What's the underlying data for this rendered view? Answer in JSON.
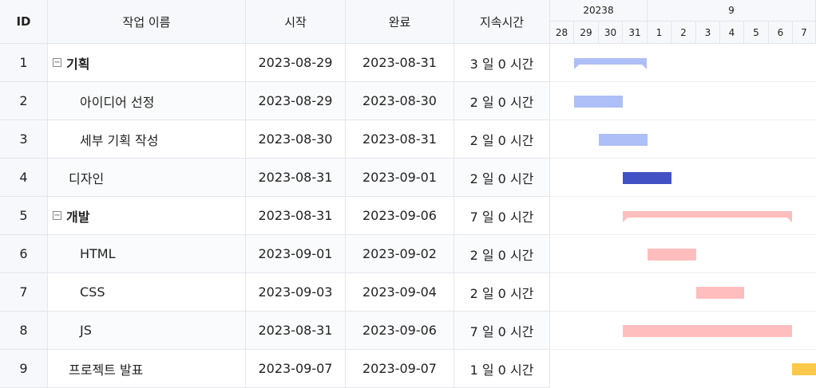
{
  "headers": {
    "id": "ID",
    "name": "작업 이름",
    "start": "시작",
    "end": "완료",
    "duration": "지속시간"
  },
  "timeline": {
    "months": [
      "20238",
      "9"
    ],
    "days": [
      "28",
      "29",
      "30",
      "31",
      "1",
      "2",
      "3",
      "4",
      "5",
      "6",
      "7"
    ]
  },
  "colors": {
    "blue_light": "#aebef7",
    "blue_dark": "#4252c5",
    "pink": "#ffbdbd",
    "yellow": "#fbc94a"
  },
  "tasks": [
    {
      "id": "1",
      "name": "기획",
      "start": "2023-08-29",
      "end": "2023-08-31",
      "duration": "3 일 0 시간",
      "toggle": "−"
    },
    {
      "id": "2",
      "name": "아이디어 선정",
      "start": "2023-08-29",
      "end": "2023-08-30",
      "duration": "2 일 0 시간"
    },
    {
      "id": "3",
      "name": "세부 기획 작성",
      "start": "2023-08-30",
      "end": "2023-08-31",
      "duration": "2 일 0 시간"
    },
    {
      "id": "4",
      "name": "디자인",
      "start": "2023-08-31",
      "end": "2023-09-01",
      "duration": "2 일 0 시간"
    },
    {
      "id": "5",
      "name": "개발",
      "start": "2023-08-31",
      "end": "2023-09-06",
      "duration": "7 일 0 시간",
      "toggle": "−"
    },
    {
      "id": "6",
      "name": "HTML",
      "start": "2023-09-01",
      "end": "2023-09-02",
      "duration": "2 일 0 시간"
    },
    {
      "id": "7",
      "name": "CSS",
      "start": "2023-09-03",
      "end": "2023-09-04",
      "duration": "2 일 0 시간"
    },
    {
      "id": "8",
      "name": "JS",
      "start": "2023-08-31",
      "end": "2023-09-06",
      "duration": "7 일 0 시간"
    },
    {
      "id": "9",
      "name": "프로젝트 발표",
      "start": "2023-09-07",
      "end": "2023-09-07",
      "duration": "1 일 0 시간"
    }
  ]
}
